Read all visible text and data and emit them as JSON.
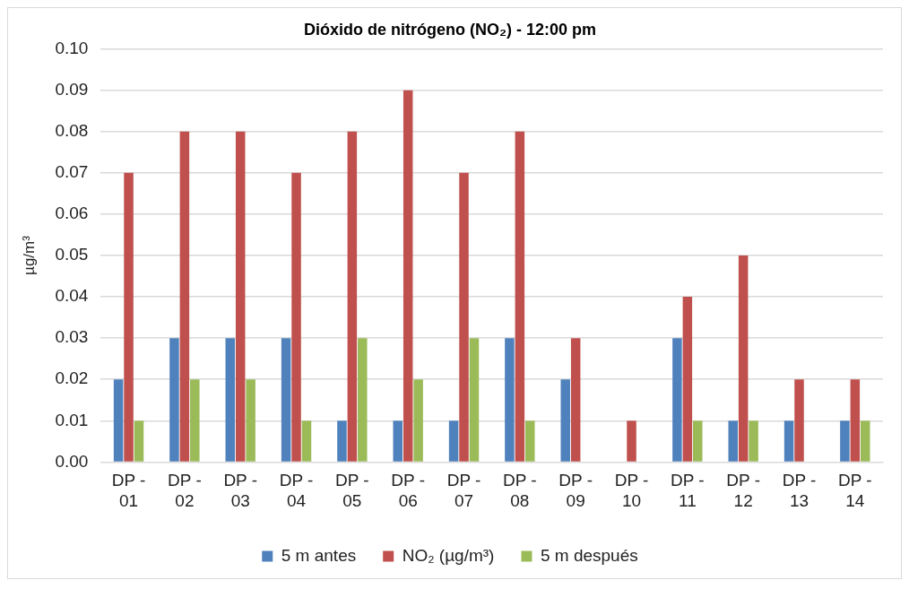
{
  "chart_data": {
    "type": "bar",
    "title": "Dióxido de nitrógeno (NO₂) - 12:00 pm",
    "ylabel": "µg/m³",
    "categories": [
      "DP - 01",
      "DP - 02",
      "DP - 03",
      "DP - 04",
      "DP - 05",
      "DP - 06",
      "DP - 07",
      "DP - 08",
      "DP - 09",
      "DP - 10",
      "DP - 11",
      "DP - 12",
      "DP - 13",
      "DP - 14"
    ],
    "series": [
      {
        "name": "5 m antes",
        "color": "#4f81bd",
        "values": [
          0.02,
          0.03,
          0.03,
          0.03,
          0.01,
          0.01,
          0.01,
          0.03,
          0.02,
          0,
          0.03,
          0.01,
          0.01,
          0.01
        ]
      },
      {
        "name": "NO₂ (µg/m³)",
        "color": "#c0504d",
        "values": [
          0.07,
          0.08,
          0.08,
          0.07,
          0.08,
          0.09,
          0.07,
          0.08,
          0.03,
          0.01,
          0.04,
          0.05,
          0.02,
          0.02
        ]
      },
      {
        "name": "5 m después",
        "color": "#9bbb59",
        "values": [
          0.01,
          0.02,
          0.02,
          0.01,
          0.03,
          0.02,
          0.03,
          0.01,
          0,
          0,
          0.01,
          0.01,
          0,
          0.01
        ]
      }
    ],
    "ylim": [
      0,
      0.1
    ],
    "yticks": [
      {
        "value": 0,
        "label": "0.00"
      },
      {
        "value": 0.01,
        "label": "0.01"
      },
      {
        "value": 0.02,
        "label": "0.02"
      },
      {
        "value": 0.03,
        "label": "0.03"
      },
      {
        "value": 0.04,
        "label": "0.04"
      },
      {
        "value": 0.05,
        "label": "0.05"
      },
      {
        "value": 0.06,
        "label": "0.06"
      },
      {
        "value": 0.07,
        "label": "0.07"
      },
      {
        "value": 0.08,
        "label": "0.08"
      },
      {
        "value": 0.09,
        "label": "0.09"
      },
      {
        "value": 0.1,
        "label": "0.10"
      }
    ],
    "grid": "y",
    "legend": "bottom"
  }
}
